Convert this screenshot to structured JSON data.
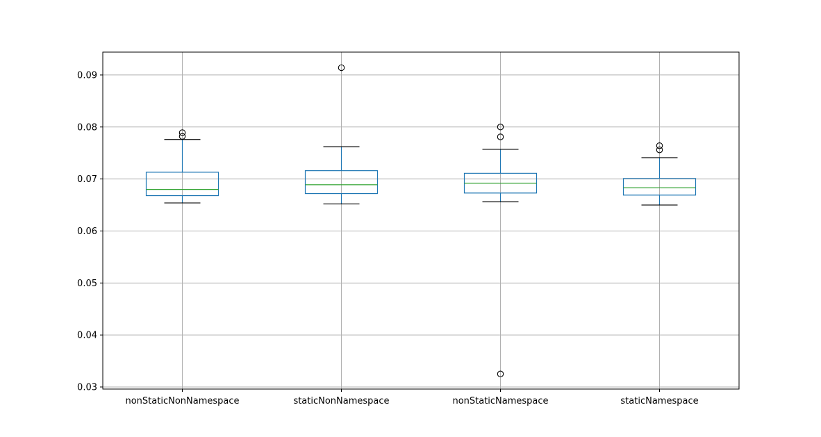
{
  "chart_data": {
    "type": "box",
    "title": "",
    "xlabel": "",
    "ylabel": "",
    "grid": true,
    "ylim": [
      0.0296,
      0.0944
    ],
    "yticks": [
      0.03,
      0.04,
      0.05,
      0.06,
      0.07,
      0.08,
      0.09
    ],
    "ytick_labels": [
      "0.03",
      "0.04",
      "0.05",
      "0.06",
      "0.07",
      "0.08",
      "0.09"
    ],
    "categories": [
      "nonStaticNonNamespace",
      "staticNonNamespace",
      "nonStaticNamespace",
      "staticNamespace"
    ],
    "boxes": [
      {
        "whisker_low": 0.0654,
        "q1": 0.0668,
        "median": 0.068,
        "q3": 0.0713,
        "whisker_high": 0.0776,
        "outliers": [
          0.0789,
          0.0782
        ]
      },
      {
        "whisker_low": 0.0652,
        "q1": 0.0672,
        "median": 0.0689,
        "q3": 0.0716,
        "whisker_high": 0.0762,
        "outliers": [
          0.0914
        ]
      },
      {
        "whisker_low": 0.0656,
        "q1": 0.0673,
        "median": 0.0692,
        "q3": 0.0711,
        "whisker_high": 0.0757,
        "outliers": [
          0.08,
          0.0781,
          0.0325
        ]
      },
      {
        "whisker_low": 0.065,
        "q1": 0.0669,
        "median": 0.0683,
        "q3": 0.0701,
        "whisker_high": 0.0741,
        "outliers": [
          0.0764,
          0.0756
        ]
      }
    ],
    "colors": {
      "box": "#1f77b4",
      "median": "#2ca02c",
      "whisker_cap": "#000000",
      "grid": "#b0b0b0",
      "outlier": "#000000"
    }
  }
}
